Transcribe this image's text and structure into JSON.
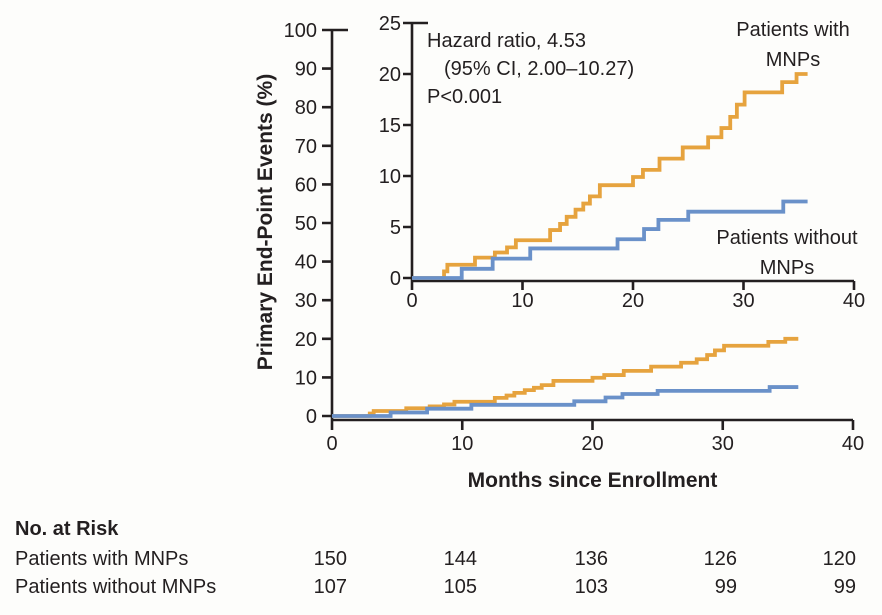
{
  "page": {
    "background": "#FDFDFB"
  },
  "colors": {
    "with_mnps": "#E6A33E",
    "without_mnps": "#6A91C9",
    "axis": "#231F20",
    "text": "#231F20"
  },
  "axis_titles": {
    "y": "Primary End-Point Events (%)",
    "x": "Months since Enrollment"
  },
  "annotation": {
    "line1": "Hazard ratio, 4.53",
    "line2": "(95% CI, 2.00–10.27)",
    "line3": "P<0.001"
  },
  "curve_labels": {
    "with": {
      "line1": "Patients with",
      "line2": "MNPs"
    },
    "without": {
      "line1": "Patients without",
      "line2": "MNPs"
    }
  },
  "risk_table": {
    "title": "No. at Risk",
    "rows": [
      {
        "label": "Patients with MNPs",
        "values": [
          "150",
          "144",
          "136",
          "126",
          "120"
        ]
      },
      {
        "label": "Patients without MNPs",
        "values": [
          "107",
          "105",
          "103",
          "99",
          "99"
        ]
      }
    ]
  },
  "chart_data": {
    "type": "line",
    "subtype": "kaplan-meier-step",
    "title": "",
    "xlabel": "Months since Enrollment",
    "ylabel": "Primary End-Point Events (%)",
    "annotation": "Hazard ratio, 4.53 (95% CI, 2.00–10.27), P<0.001",
    "legend_position": "on-chart",
    "grid": false,
    "series": [
      {
        "name": "Patients with MNPs",
        "color": "#E6A33E",
        "end_month": 35.8,
        "step_points": [
          [
            2.9,
            0.65
          ],
          [
            3.2,
            1.3
          ],
          [
            5.7,
            2.0
          ],
          [
            7.5,
            2.5
          ],
          [
            8.6,
            3.0
          ],
          [
            9.4,
            3.7
          ],
          [
            12.5,
            4.7
          ],
          [
            13.4,
            5.3
          ],
          [
            14.0,
            6.0
          ],
          [
            14.8,
            6.7
          ],
          [
            15.5,
            7.3
          ],
          [
            16.1,
            8.0
          ],
          [
            17.0,
            9.1
          ],
          [
            20.0,
            9.9
          ],
          [
            20.9,
            10.6
          ],
          [
            22.4,
            11.7
          ],
          [
            24.5,
            12.8
          ],
          [
            26.8,
            13.8
          ],
          [
            28.0,
            14.7
          ],
          [
            28.8,
            15.8
          ],
          [
            29.4,
            17.0
          ],
          [
            30.1,
            18.2
          ],
          [
            33.5,
            19.2
          ],
          [
            34.8,
            20.0
          ]
        ]
      },
      {
        "name": "Patients without MNPs",
        "color": "#6A91C9",
        "end_month": 35.8,
        "step_points": [
          [
            4.5,
            0.9
          ],
          [
            7.3,
            1.9
          ],
          [
            10.7,
            2.9
          ],
          [
            18.6,
            3.8
          ],
          [
            21.0,
            4.8
          ],
          [
            22.3,
            5.7
          ],
          [
            25.0,
            6.5
          ],
          [
            33.6,
            7.5
          ]
        ]
      }
    ],
    "views": [
      {
        "id": "main",
        "xlim": [
          0,
          40
        ],
        "ylim": [
          0,
          100
        ],
        "xticks": [
          0,
          10,
          20,
          30,
          40
        ],
        "yticks": [
          0,
          10,
          20,
          30,
          40,
          50,
          60,
          70,
          80,
          90,
          100
        ]
      },
      {
        "id": "inset",
        "xlim": [
          0,
          40
        ],
        "ylim": [
          0,
          25
        ],
        "xticks": [
          0,
          10,
          20,
          30,
          40
        ],
        "yticks": [
          0,
          5,
          10,
          15,
          20,
          25
        ]
      }
    ]
  }
}
